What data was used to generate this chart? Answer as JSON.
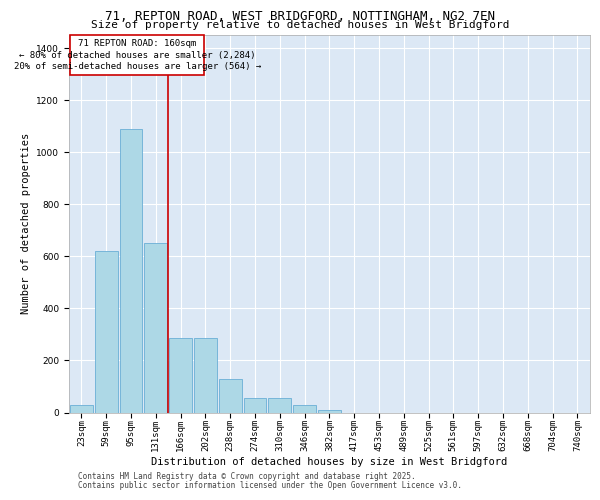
{
  "title_line1": "71, REPTON ROAD, WEST BRIDGFORD, NOTTINGHAM, NG2 7EN",
  "title_line2": "Size of property relative to detached houses in West Bridgford",
  "xlabel": "Distribution of detached houses by size in West Bridgford",
  "ylabel": "Number of detached properties",
  "categories": [
    "23sqm",
    "59sqm",
    "95sqm",
    "131sqm",
    "166sqm",
    "202sqm",
    "238sqm",
    "274sqm",
    "310sqm",
    "346sqm",
    "382sqm",
    "417sqm",
    "453sqm",
    "489sqm",
    "525sqm",
    "561sqm",
    "597sqm",
    "632sqm",
    "668sqm",
    "704sqm",
    "740sqm"
  ],
  "values": [
    30,
    620,
    1090,
    650,
    285,
    285,
    130,
    55,
    55,
    30,
    10,
    0,
    0,
    0,
    0,
    0,
    0,
    0,
    0,
    0,
    0
  ],
  "bar_color": "#add8e6",
  "bar_edge_color": "#6aaed6",
  "background_color": "#dce8f5",
  "vline_x_index": 3.5,
  "vline_color": "#cc0000",
  "annotation_text": "71 REPTON ROAD: 160sqm\n← 80% of detached houses are smaller (2,284)\n20% of semi-detached houses are larger (564) →",
  "annotation_box_color": "#cc0000",
  "ylim": [
    0,
    1450
  ],
  "yticks": [
    0,
    200,
    400,
    600,
    800,
    1000,
    1200,
    1400
  ],
  "footer_line1": "Contains HM Land Registry data © Crown copyright and database right 2025.",
  "footer_line2": "Contains public sector information licensed under the Open Government Licence v3.0.",
  "title_fontsize": 9,
  "subtitle_fontsize": 8,
  "axis_label_fontsize": 7.5,
  "tick_fontsize": 6.5,
  "annotation_fontsize": 6.5,
  "footer_fontsize": 5.5
}
